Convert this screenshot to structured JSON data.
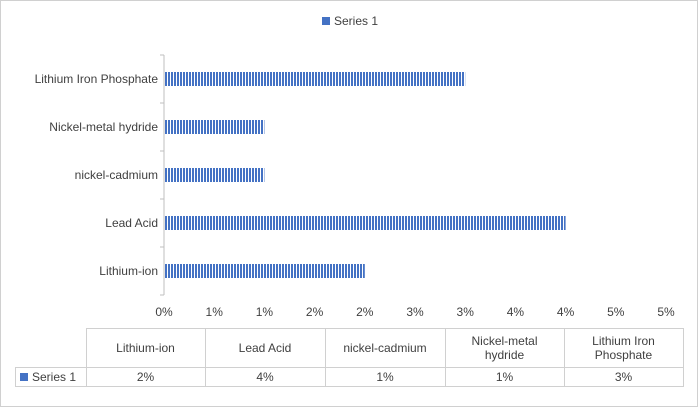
{
  "chart_data": {
    "type": "bar",
    "orientation": "horizontal",
    "categories": [
      "Lithium-ion",
      "Lead Acid",
      "nickel-cadmium",
      "Nickel-metal hydride",
      "Lithium Iron Phosphate"
    ],
    "series": [
      {
        "name": "Series 1",
        "values": [
          0.02,
          0.04,
          0.01,
          0.01,
          0.03
        ],
        "color": "#4472c4"
      }
    ],
    "xlim": [
      0,
      0.05
    ],
    "x_ticks": [
      0,
      0.005,
      0.01,
      0.015,
      0.02,
      0.025,
      0.03,
      0.035,
      0.04,
      0.045,
      0.05
    ],
    "x_tick_labels": [
      "0%",
      "1%",
      "1%",
      "2%",
      "2%",
      "3%",
      "3%",
      "4%",
      "4%",
      "5%",
      "5%"
    ],
    "grid": false,
    "legend_position": "top",
    "data_table": {
      "columns": [
        "Lithium-ion",
        "Lead Acid",
        "nickel-cadmium",
        "Nickel-metal hydride",
        "Lithium Iron Phosphate"
      ],
      "row_label": "Series 1",
      "values": [
        "2%",
        "4%",
        "1%",
        "1%",
        "3%"
      ]
    }
  }
}
